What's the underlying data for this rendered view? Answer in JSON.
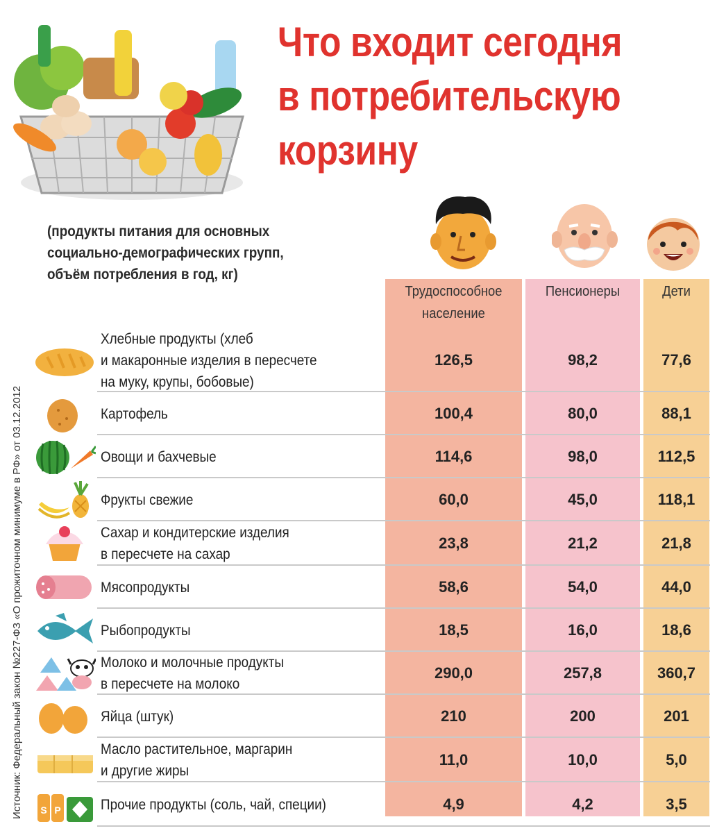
{
  "title": [
    "Что входит сегодня",
    "в потребительскую",
    "корзину"
  ],
  "subtitle": [
    "(продукты питания для основных",
    "социально-демографических групп,",
    "объём потребления в год, кг)"
  ],
  "source": "Источник: Федеральный закон №227-ФЗ «О прожиточном минимуме в РФ» от 03.12.2012",
  "columns": {
    "working": "Трудоспособное население",
    "pensioners": "Пенсионеры",
    "children": "Дети"
  },
  "colors": {
    "title": "#e0332e",
    "working": "#f4b5a0",
    "pensioners": "#f6c3cc",
    "children": "#f7d095"
  },
  "rows": [
    {
      "icon": "bread-icon",
      "label": "Хлебные продукты (хлеб\nи макаронные изделия в пересчете\nна муку, крупы, бобовые)",
      "working": "126,5",
      "pensioners": "98,2",
      "children": "77,6"
    },
    {
      "icon": "potato-icon",
      "label": "Картофель",
      "working": "100,4",
      "pensioners": "80,0",
      "children": "88,1"
    },
    {
      "icon": "watermelon-carrot-icon",
      "label": "Овощи и бахчевые",
      "working": "114,6",
      "pensioners": "98,0",
      "children": "112,5"
    },
    {
      "icon": "banana-pineapple-icon",
      "label": "Фрукты свежие",
      "working": "60,0",
      "pensioners": "45,0",
      "children": "118,1"
    },
    {
      "icon": "cupcake-icon",
      "label": "Сахар и кондитерские изделия\nв пересчете на сахар",
      "working": "23,8",
      "pensioners": "21,2",
      "children": "21,8"
    },
    {
      "icon": "sausage-icon",
      "label": "Мясопродукты",
      "working": "58,6",
      "pensioners": "54,0",
      "children": "44,0"
    },
    {
      "icon": "fish-icon",
      "label": "Рыбопродукты",
      "working": "18,5",
      "pensioners": "16,0",
      "children": "18,6"
    },
    {
      "icon": "cheese-cow-icon",
      "label": "Молоко и молочные продукты\nв пересчете на молоко",
      "working": "290,0",
      "pensioners": "257,8",
      "children": "360,7"
    },
    {
      "icon": "eggs-icon",
      "label": "Яйца (штук)",
      "working": "210",
      "pensioners": "200",
      "children": "201"
    },
    {
      "icon": "butter-icon",
      "label": "Масло растительное, маргарин\nи другие жиры",
      "working": "11,0",
      "pensioners": "10,0",
      "children": "5,0"
    },
    {
      "icon": "salt-pepper-tea-icon",
      "label": "Прочие продукты (соль, чай, специи)",
      "working": "4,9",
      "pensioners": "4,2",
      "children": "3,5"
    }
  ],
  "icon_letters": {
    "salt": "S",
    "pepper": "P"
  }
}
